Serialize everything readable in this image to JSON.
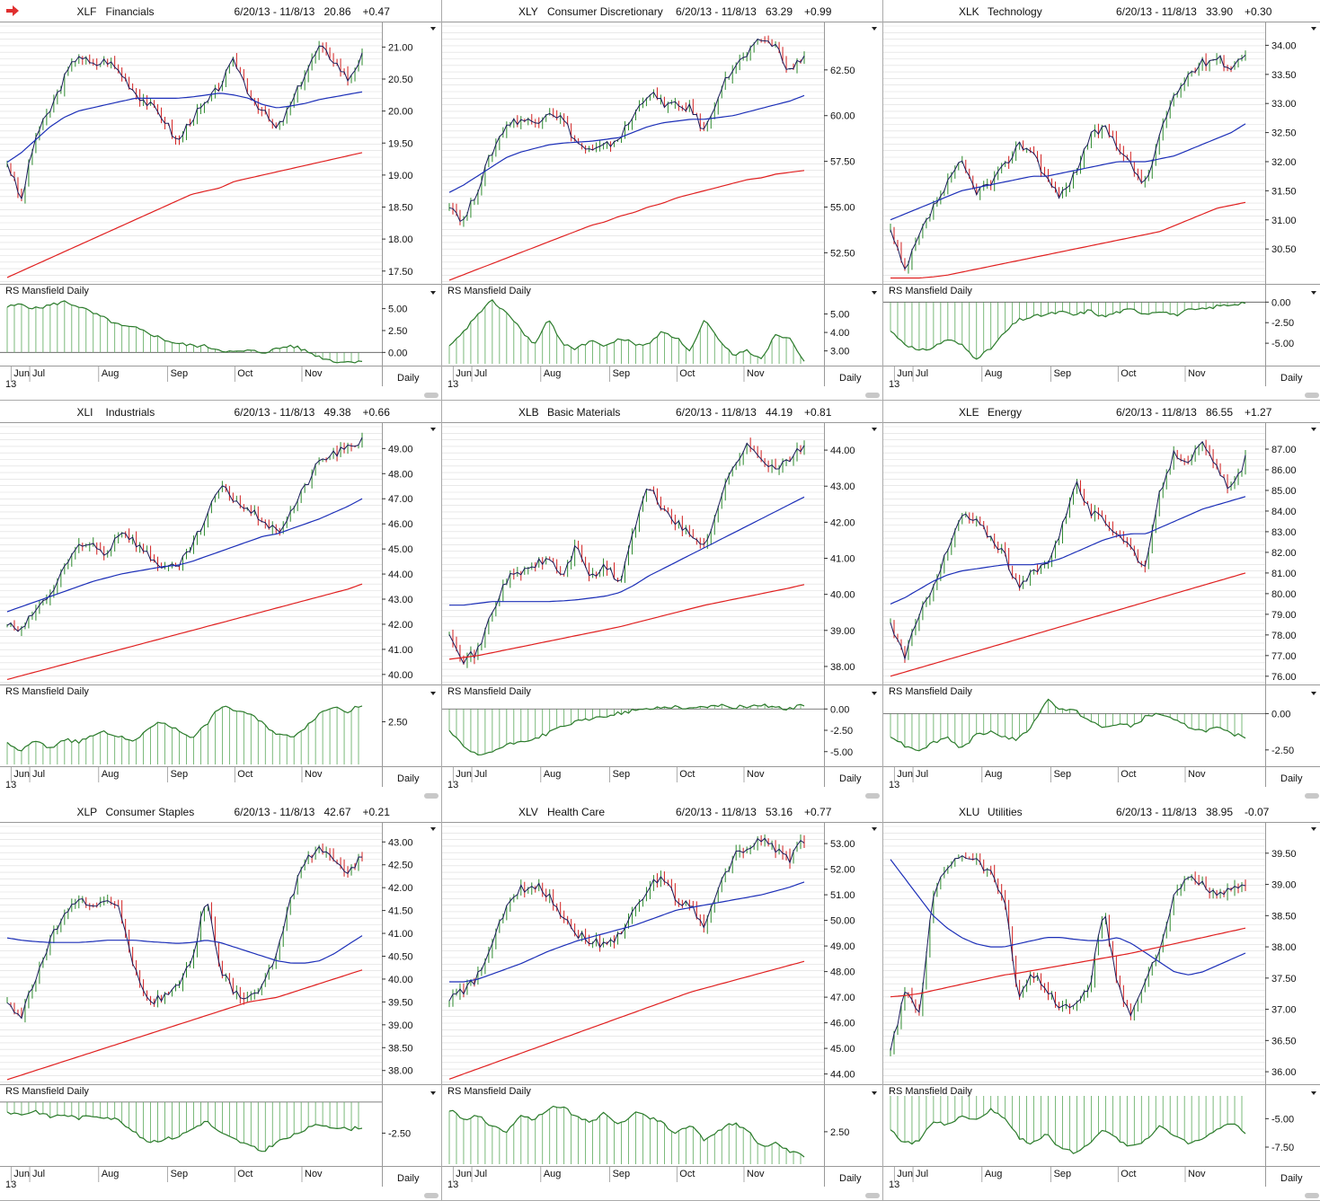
{
  "months": [
    "Jun",
    "Jul",
    "Aug",
    "Sep",
    "Oct",
    "Nov"
  ],
  "year_label": "13",
  "period_label": "Daily",
  "rs_title": "RS Mansfield Daily",
  "colors": {
    "up": "#2e8b2e",
    "down": "#d21f1f",
    "price": "#1a1a5a",
    "ma_short": "#1c2fb8",
    "ma_long": "#e02020",
    "rs": "#2a7a2a",
    "grid": "#dcdcdc"
  },
  "chart_data": [
    {
      "type": "line",
      "ticker": "XLF",
      "name": "Financials",
      "range": "6/20/13 - 11/8/13",
      "last": "20.86",
      "change": "+0.47",
      "price_ticks": [
        "21.00",
        "20.50",
        "20.00",
        "19.50",
        "19.00",
        "18.50",
        "18.00",
        "17.50"
      ],
      "ylim": [
        17.3,
        21.3
      ],
      "close": [
        19.2,
        18.6,
        19.6,
        20.0,
        20.5,
        20.9,
        20.7,
        20.8,
        20.6,
        20.3,
        20.1,
        19.9,
        19.5,
        19.9,
        20.1,
        20.4,
        20.8,
        20.3,
        20.0,
        19.7,
        20.1,
        20.6,
        21.0,
        20.8,
        20.5,
        20.86
      ],
      "ma_short": [
        19.2,
        19.35,
        19.55,
        19.75,
        19.9,
        20.0,
        20.05,
        20.1,
        20.15,
        20.2,
        20.2,
        20.2,
        20.2,
        20.22,
        20.25,
        20.28,
        20.25,
        20.2,
        20.1,
        20.05,
        20.08,
        20.12,
        20.18,
        20.22,
        20.26,
        20.3
      ],
      "ma_long": [
        17.4,
        17.5,
        17.6,
        17.7,
        17.8,
        17.9,
        18.0,
        18.1,
        18.2,
        18.3,
        18.4,
        18.5,
        18.6,
        18.7,
        18.75,
        18.8,
        18.9,
        18.95,
        19.0,
        19.05,
        19.1,
        19.15,
        19.2,
        19.25,
        19.3,
        19.35
      ],
      "rs_ticks": [
        "5.00",
        "2.50",
        "0.00"
      ],
      "rs_lim": [
        -1.3,
        6.5
      ],
      "rs": [
        5.2,
        5.5,
        5.0,
        5.4,
        5.8,
        5.3,
        4.5,
        3.8,
        3.0,
        2.8,
        2.2,
        1.5,
        1.0,
        0.8,
        0.7,
        0.3,
        0.0,
        0.2,
        0.0,
        0.4,
        0.8,
        0.2,
        -0.5,
        -1.0,
        -1.1,
        -0.9
      ]
    },
    {
      "type": "line",
      "ticker": "XLY",
      "name": "Consumer Discretionary",
      "range": "6/20/13 - 11/8/13",
      "last": "63.29",
      "change": "+0.99",
      "price_ticks": [
        "62.50",
        "60.00",
        "57.50",
        "55.00",
        "52.50"
      ],
      "ylim": [
        50.8,
        64.8
      ],
      "close": [
        55.2,
        54.2,
        56.0,
        58.0,
        59.5,
        59.8,
        59.6,
        60.3,
        59.8,
        58.5,
        58.0,
        58.3,
        58.8,
        60.0,
        61.3,
        60.7,
        60.5,
        60.4,
        59.1,
        61.3,
        62.6,
        63.3,
        64.2,
        63.8,
        62.4,
        63.29
      ],
      "ma_short": [
        55.8,
        56.2,
        56.7,
        57.2,
        57.7,
        58.0,
        58.2,
        58.4,
        58.5,
        58.55,
        58.6,
        58.7,
        58.8,
        59.1,
        59.4,
        59.6,
        59.7,
        59.8,
        59.8,
        59.9,
        60.0,
        60.2,
        60.4,
        60.6,
        60.8,
        61.1
      ],
      "ma_long": [
        51.0,
        51.3,
        51.6,
        51.9,
        52.2,
        52.5,
        52.8,
        53.1,
        53.4,
        53.7,
        54.0,
        54.2,
        54.5,
        54.7,
        55.0,
        55.2,
        55.5,
        55.7,
        55.9,
        56.1,
        56.3,
        56.5,
        56.6,
        56.8,
        56.9,
        57.0
      ],
      "rs_ticks": [
        "5.00",
        "4.00",
        "3.00"
      ],
      "rs_lim": [
        2.3,
        6.0
      ],
      "rs": [
        3.2,
        4.0,
        5.0,
        5.7,
        5.1,
        4.2,
        3.3,
        4.7,
        3.4,
        3.1,
        3.6,
        3.2,
        3.7,
        3.4,
        3.3,
        4.1,
        3.7,
        3.0,
        4.7,
        3.5,
        2.8,
        3.0,
        2.6,
        3.9,
        3.7,
        2.5
      ]
    },
    {
      "type": "line",
      "ticker": "XLK",
      "name": "Technology",
      "range": "6/20/13 - 11/8/13",
      "last": "33.90",
      "change": "+0.30",
      "price_ticks": [
        "34.00",
        "33.50",
        "33.00",
        "32.50",
        "32.00",
        "31.50",
        "31.00",
        "30.50"
      ],
      "ylim": [
        29.9,
        34.3
      ],
      "close": [
        30.8,
        30.1,
        30.7,
        31.2,
        31.6,
        32.0,
        31.5,
        31.6,
        31.9,
        32.3,
        32.2,
        31.7,
        31.4,
        31.8,
        32.4,
        32.6,
        32.3,
        31.9,
        31.6,
        32.5,
        33.1,
        33.5,
        33.7,
        33.8,
        33.6,
        33.9
      ],
      "ma_short": [
        31.0,
        31.1,
        31.2,
        31.3,
        31.4,
        31.5,
        31.55,
        31.6,
        31.65,
        31.7,
        31.75,
        31.75,
        31.8,
        31.85,
        31.9,
        31.95,
        32.0,
        32.0,
        32.0,
        32.05,
        32.1,
        32.2,
        32.3,
        32.4,
        32.5,
        32.65
      ],
      "ma_long": [
        30.0,
        30.0,
        30.0,
        30.02,
        30.05,
        30.1,
        30.15,
        30.2,
        30.25,
        30.3,
        30.35,
        30.4,
        30.45,
        30.5,
        30.55,
        30.6,
        30.65,
        30.7,
        30.75,
        30.8,
        30.9,
        31.0,
        31.1,
        31.2,
        31.25,
        31.3
      ],
      "rs_ticks": [
        "0.00",
        "-2.50",
        "-5.00"
      ],
      "rs_lim": [
        -7.5,
        0.8
      ],
      "rs": [
        -3.5,
        -5.0,
        -6.0,
        -5.5,
        -4.5,
        -5.2,
        -6.8,
        -5.8,
        -3.8,
        -2.2,
        -1.8,
        -1.5,
        -1.2,
        -1.6,
        -1.0,
        -1.8,
        -1.2,
        -0.9,
        -1.4,
        -1.0,
        -1.6,
        -1.0,
        -0.9,
        -0.5,
        -0.3,
        0.0
      ]
    },
    {
      "type": "line",
      "ticker": "XLI",
      "name": "Industrials",
      "range": "6/20/13 - 11/8/13",
      "last": "49.38",
      "change": "+0.66",
      "price_ticks": [
        "49.00",
        "48.00",
        "47.00",
        "46.00",
        "45.00",
        "44.00",
        "43.00",
        "42.00",
        "41.00",
        "40.00"
      ],
      "ylim": [
        39.6,
        49.8
      ],
      "close": [
        42.0,
        41.7,
        42.6,
        43.1,
        44.3,
        45.0,
        45.2,
        44.8,
        45.8,
        45.3,
        44.7,
        44.3,
        44.2,
        45.1,
        46.2,
        47.5,
        47.0,
        46.5,
        46.2,
        45.6,
        46.5,
        47.5,
        48.5,
        48.8,
        49.0,
        49.38
      ],
      "ma_short": [
        42.5,
        42.7,
        42.9,
        43.1,
        43.3,
        43.5,
        43.7,
        43.85,
        44.0,
        44.1,
        44.2,
        44.3,
        44.35,
        44.5,
        44.7,
        44.9,
        45.1,
        45.3,
        45.5,
        45.6,
        45.8,
        46.0,
        46.2,
        46.45,
        46.7,
        47.0
      ],
      "ma_long": [
        39.8,
        39.95,
        40.1,
        40.25,
        40.4,
        40.55,
        40.7,
        40.85,
        41.0,
        41.15,
        41.3,
        41.45,
        41.6,
        41.75,
        41.9,
        42.05,
        42.2,
        42.35,
        42.5,
        42.65,
        42.8,
        42.95,
        43.1,
        43.25,
        43.4,
        43.6
      ],
      "rs_ticks": [
        "2.50"
      ],
      "rs_lim": [
        0.0,
        4.0
      ],
      "rs": [
        1.2,
        0.8,
        1.4,
        0.9,
        1.5,
        1.3,
        1.7,
        1.9,
        1.6,
        1.3,
        2.2,
        2.5,
        2.0,
        1.6,
        2.3,
        3.4,
        3.2,
        3.0,
        2.4,
        1.8,
        1.6,
        2.2,
        3.0,
        3.4,
        3.1,
        3.5
      ]
    },
    {
      "type": "line",
      "ticker": "XLB",
      "name": "Basic Materials",
      "range": "6/20/13 - 11/8/13",
      "last": "44.19",
      "change": "+0.81",
      "price_ticks": [
        "44.00",
        "43.00",
        "42.00",
        "41.00",
        "40.00",
        "39.00",
        "38.00"
      ],
      "ylim": [
        37.5,
        44.6
      ],
      "close": [
        39.0,
        38.2,
        38.4,
        39.5,
        40.4,
        40.6,
        40.8,
        41.0,
        40.5,
        41.4,
        40.4,
        40.8,
        40.3,
        41.8,
        43.0,
        42.4,
        42.0,
        41.6,
        41.4,
        42.5,
        43.6,
        44.1,
        43.8,
        43.5,
        43.7,
        44.19
      ],
      "ma_short": [
        39.7,
        39.7,
        39.75,
        39.8,
        39.8,
        39.8,
        39.8,
        39.8,
        39.82,
        39.85,
        39.9,
        39.95,
        40.05,
        40.25,
        40.5,
        40.7,
        40.9,
        41.1,
        41.3,
        41.5,
        41.7,
        41.9,
        42.1,
        42.3,
        42.5,
        42.7
      ],
      "ma_long": [
        38.2,
        38.25,
        38.3,
        38.38,
        38.46,
        38.54,
        38.62,
        38.7,
        38.78,
        38.86,
        38.94,
        39.02,
        39.1,
        39.2,
        39.3,
        39.4,
        39.5,
        39.6,
        39.7,
        39.78,
        39.86,
        39.94,
        40.02,
        40.1,
        40.18,
        40.27
      ],
      "rs_ticks": [
        "0.00",
        "-2.50",
        "-5.00"
      ],
      "rs_lim": [
        -6.5,
        1.5
      ],
      "rs": [
        -2.5,
        -4.5,
        -5.5,
        -5.0,
        -4.3,
        -3.8,
        -3.5,
        -2.8,
        -2.0,
        -1.5,
        -1.2,
        -0.8,
        -0.5,
        -0.2,
        0.0,
        0.2,
        0.3,
        0.0,
        0.3,
        0.4,
        0.2,
        0.3,
        0.5,
        0.2,
        0.0,
        0.5
      ]
    },
    {
      "type": "line",
      "ticker": "XLE",
      "name": "Energy",
      "range": "6/20/13 - 11/8/13",
      "last": "86.55",
      "change": "+1.27",
      "price_ticks": [
        "87.00",
        "86.00",
        "85.00",
        "84.00",
        "83.00",
        "82.00",
        "81.00",
        "80.00",
        "79.00",
        "78.00",
        "77.00",
        "76.00"
      ],
      "ylim": [
        75.6,
        88.0
      ],
      "close": [
        78.5,
        77.0,
        78.8,
        80.5,
        82.0,
        83.8,
        83.5,
        82.8,
        82.0,
        80.2,
        81.0,
        81.5,
        83.0,
        85.5,
        84.0,
        83.5,
        83.0,
        82.2,
        81.2,
        85.0,
        86.8,
        86.5,
        87.2,
        86.0,
        85.0,
        86.55
      ],
      "ma_short": [
        79.5,
        79.8,
        80.2,
        80.6,
        80.9,
        81.1,
        81.2,
        81.3,
        81.4,
        81.4,
        81.4,
        81.5,
        81.7,
        82.0,
        82.3,
        82.6,
        82.8,
        82.9,
        82.9,
        83.2,
        83.5,
        83.8,
        84.1,
        84.3,
        84.5,
        84.7
      ],
      "ma_long": [
        76.0,
        76.2,
        76.4,
        76.6,
        76.8,
        77.0,
        77.2,
        77.4,
        77.6,
        77.8,
        78.0,
        78.2,
        78.4,
        78.6,
        78.8,
        79.0,
        79.2,
        79.4,
        79.6,
        79.8,
        80.0,
        80.2,
        80.4,
        80.6,
        80.8,
        81.0
      ],
      "rs_ticks": [
        "0.00",
        "-2.50"
      ],
      "rs_lim": [
        -3.5,
        1.2
      ],
      "rs": [
        -1.5,
        -2.2,
        -2.5,
        -2.0,
        -1.6,
        -2.4,
        -1.5,
        -1.2,
        -1.6,
        -1.8,
        -0.8,
        1.0,
        0.3,
        0.2,
        -0.5,
        -1.0,
        -0.7,
        -0.9,
        -0.2,
        0.0,
        -0.5,
        -0.9,
        -1.2,
        -1.0,
        -1.4,
        -1.6
      ]
    },
    {
      "type": "line",
      "ticker": "XLP",
      "name": "Consumer Staples",
      "range": "6/20/13 - 11/8/13",
      "last": "42.67",
      "change": "+0.21",
      "price_ticks": [
        "43.00",
        "42.50",
        "42.00",
        "41.50",
        "41.00",
        "40.50",
        "40.00",
        "39.50",
        "39.00",
        "38.50",
        "38.00"
      ],
      "ylim": [
        37.7,
        43.3
      ],
      "close": [
        39.5,
        39.2,
        40.0,
        40.8,
        41.5,
        41.7,
        41.6,
        41.7,
        41.5,
        40.2,
        39.5,
        39.6,
        39.8,
        40.4,
        41.8,
        40.2,
        39.7,
        39.6,
        39.8,
        40.6,
        41.8,
        42.6,
        42.9,
        42.6,
        42.3,
        42.67
      ],
      "ma_short": [
        40.9,
        40.85,
        40.82,
        40.8,
        40.8,
        40.8,
        40.82,
        40.85,
        40.85,
        40.85,
        40.82,
        40.8,
        40.78,
        40.8,
        40.85,
        40.8,
        40.7,
        40.6,
        40.5,
        40.4,
        40.35,
        40.35,
        40.4,
        40.55,
        40.75,
        40.95
      ],
      "ma_long": [
        37.8,
        37.9,
        38.0,
        38.1,
        38.2,
        38.3,
        38.4,
        38.5,
        38.6,
        38.7,
        38.8,
        38.9,
        39.0,
        39.1,
        39.2,
        39.3,
        39.4,
        39.5,
        39.55,
        39.6,
        39.7,
        39.8,
        39.9,
        40.0,
        40.1,
        40.2
      ],
      "rs_ticks": [
        "-2.50"
      ],
      "rs_lim": [
        -5.0,
        0.5
      ],
      "rs": [
        -0.8,
        -1.0,
        -0.7,
        -1.2,
        -1.0,
        -1.3,
        -1.1,
        -1.2,
        -1.5,
        -2.5,
        -3.2,
        -3.0,
        -2.8,
        -2.2,
        -1.5,
        -2.5,
        -3.0,
        -3.5,
        -4.0,
        -3.2,
        -2.8,
        -2.2,
        -1.8,
        -2.0,
        -2.2,
        -2.0
      ]
    },
    {
      "type": "line",
      "ticker": "XLV",
      "name": "Health Care",
      "range": "6/20/13 - 11/8/13",
      "last": "53.16",
      "change": "+0.77",
      "price_ticks": [
        "53.00",
        "52.00",
        "51.00",
        "50.00",
        "49.00",
        "48.00",
        "47.00",
        "46.00",
        "45.00",
        "44.00"
      ],
      "ylim": [
        43.6,
        53.6
      ],
      "close": [
        47.0,
        47.2,
        47.8,
        49.0,
        50.5,
        51.2,
        51.4,
        51.0,
        50.2,
        49.5,
        49.2,
        49.0,
        49.5,
        50.3,
        51.2,
        51.8,
        50.8,
        50.6,
        49.8,
        51.2,
        52.5,
        52.8,
        53.2,
        52.8,
        52.4,
        53.16
      ],
      "ma_short": [
        47.6,
        47.6,
        47.7,
        47.9,
        48.1,
        48.3,
        48.55,
        48.8,
        49.0,
        49.2,
        49.35,
        49.5,
        49.65,
        49.8,
        50.0,
        50.2,
        50.4,
        50.5,
        50.6,
        50.7,
        50.8,
        50.9,
        51.0,
        51.15,
        51.3,
        51.5
      ],
      "ma_long": [
        43.8,
        44.0,
        44.2,
        44.4,
        44.6,
        44.8,
        45.0,
        45.2,
        45.4,
        45.6,
        45.8,
        46.0,
        46.2,
        46.4,
        46.6,
        46.8,
        47.0,
        47.2,
        47.35,
        47.5,
        47.65,
        47.8,
        47.95,
        48.1,
        48.25,
        48.4
      ],
      "rs_ticks": [
        "2.50"
      ],
      "rs_lim": [
        0.6,
        4.6
      ],
      "rs": [
        3.8,
        3.2,
        3.5,
        2.8,
        2.5,
        3.5,
        3.2,
        3.9,
        4.0,
        3.3,
        3.1,
        3.6,
        2.9,
        3.6,
        3.4,
        3.0,
        2.4,
        2.9,
        2.0,
        2.6,
        3.0,
        2.6,
        1.6,
        1.9,
        1.3,
        1.1
      ]
    },
    {
      "type": "line",
      "ticker": "XLU",
      "name": "Utilities",
      "range": "6/20/13 - 11/8/13",
      "last": "38.95",
      "change": "-0.07",
      "price_ticks": [
        "39.50",
        "39.00",
        "38.50",
        "38.00",
        "37.50",
        "37.00",
        "36.50",
        "36.00"
      ],
      "ylim": [
        35.8,
        39.9
      ],
      "close": [
        36.3,
        37.3,
        36.9,
        38.8,
        39.3,
        39.5,
        39.4,
        39.2,
        38.8,
        37.2,
        37.6,
        37.3,
        37.0,
        37.1,
        37.3,
        38.6,
        37.4,
        36.9,
        37.5,
        38.0,
        38.8,
        39.1,
        39.0,
        38.8,
        38.9,
        38.95
      ],
      "ma_short": [
        39.4,
        39.1,
        38.8,
        38.5,
        38.3,
        38.15,
        38.05,
        38.0,
        38.0,
        38.05,
        38.1,
        38.15,
        38.15,
        38.12,
        38.1,
        38.1,
        38.15,
        38.05,
        37.9,
        37.75,
        37.6,
        37.55,
        37.6,
        37.7,
        37.8,
        37.9
      ],
      "ma_long": [
        37.2,
        37.22,
        37.25,
        37.3,
        37.35,
        37.4,
        37.45,
        37.5,
        37.55,
        37.58,
        37.62,
        37.66,
        37.7,
        37.74,
        37.78,
        37.82,
        37.86,
        37.9,
        37.95,
        38.0,
        38.05,
        38.1,
        38.15,
        38.2,
        38.25,
        38.3
      ],
      "rs_ticks": [
        "-5.00",
        "-7.50"
      ],
      "rs_lim": [
        -9.0,
        -3.0
      ],
      "rs": [
        -6.0,
        -7.2,
        -7.0,
        -5.2,
        -5.6,
        -4.8,
        -5.2,
        -4.2,
        -5.0,
        -6.6,
        -7.2,
        -6.4,
        -7.6,
        -8.0,
        -7.2,
        -5.8,
        -6.8,
        -7.5,
        -6.8,
        -5.6,
        -6.6,
        -7.2,
        -6.8,
        -6.0,
        -5.4,
        -6.2
      ]
    }
  ]
}
